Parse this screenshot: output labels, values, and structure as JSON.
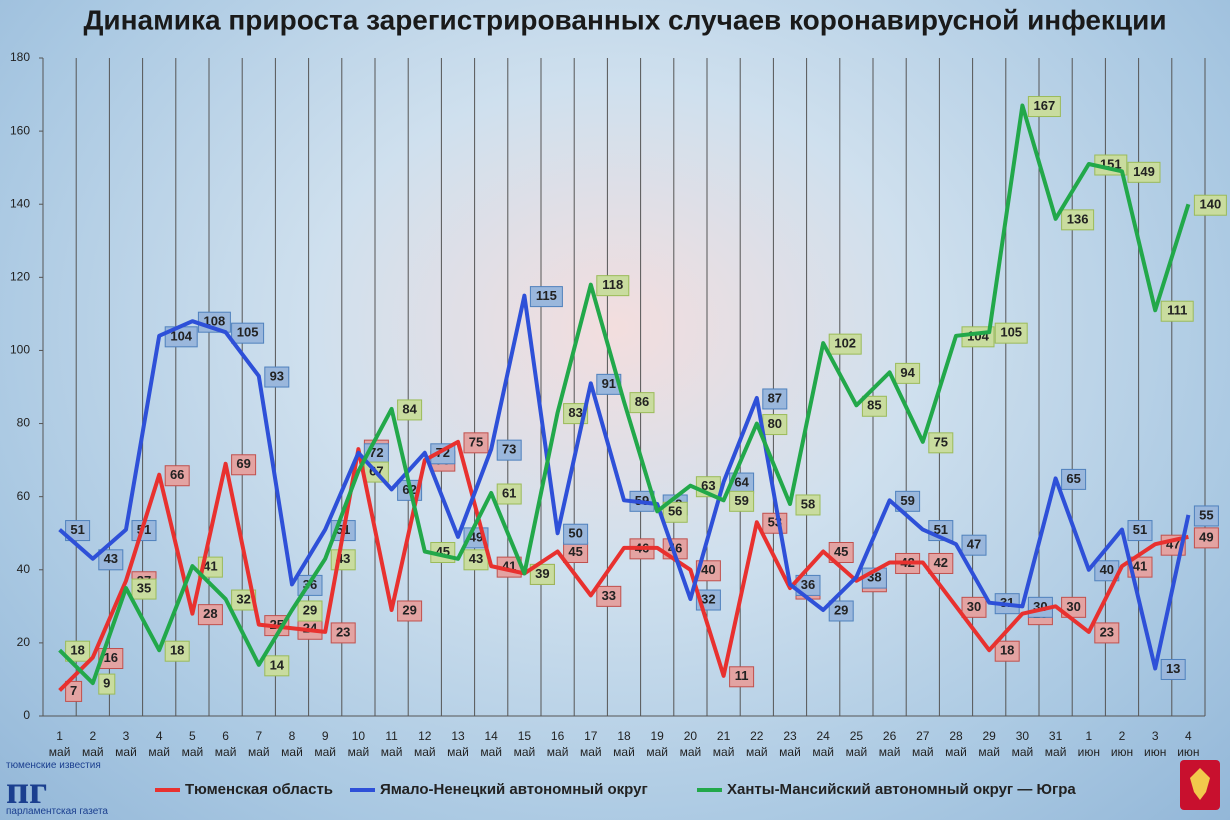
{
  "chart_data": {
    "type": "line",
    "title": "Динамика прироста зарегистрированных случаев коронавирусной инфекции",
    "categories": [
      "1 май",
      "2 май",
      "3 май",
      "4 май",
      "5 май",
      "6 май",
      "7 май",
      "8 май",
      "9 май",
      "10 май",
      "11 май",
      "12 май",
      "13 май",
      "14 май",
      "15 май",
      "16 май",
      "17 май",
      "18 май",
      "19 май",
      "20 май",
      "21 май",
      "22 май",
      "23 май",
      "24 май",
      "25 май",
      "26 май",
      "27 май",
      "28 май",
      "29 май",
      "30 май",
      "31 май",
      "1 июн",
      "2 июн",
      "3 июн",
      "4 июн"
    ],
    "series": [
      {
        "name": "Тюменская область",
        "color": "#e8312f",
        "label_fill": "#e3a3a2",
        "label_stroke": "#c0504d",
        "values": [
          7,
          16,
          37,
          66,
          28,
          69,
          25,
          24,
          23,
          73,
          29,
          70,
          75,
          41,
          39,
          45,
          33,
          46,
          46,
          40,
          11,
          53,
          35,
          45,
          37,
          42,
          42,
          30,
          18,
          28,
          30,
          23,
          41,
          47,
          49
        ]
      },
      {
        "name": "Ямало-Ненецкий автономный округ",
        "color": "#2e50d8",
        "label_fill": "#9ab7dc",
        "label_stroke": "#4f81bd",
        "values": [
          51,
          43,
          51,
          104,
          108,
          105,
          93,
          36,
          51,
          72,
          62,
          72,
          49,
          73,
          115,
          50,
          91,
          59,
          58,
          32,
          64,
          87,
          36,
          29,
          38,
          59,
          51,
          47,
          31,
          30,
          65,
          40,
          51,
          13,
          55
        ]
      },
      {
        "name": "Ханты-Мансийский автономный округ — Югра",
        "color": "#22a84a",
        "label_fill": "#c9dc9f",
        "label_stroke": "#9bbb59",
        "values": [
          18,
          9,
          35,
          18,
          41,
          32,
          14,
          29,
          43,
          67,
          84,
          45,
          43,
          61,
          39,
          83,
          118,
          86,
          56,
          63,
          59,
          80,
          58,
          102,
          85,
          94,
          75,
          104,
          105,
          167,
          136,
          151,
          149,
          111,
          140
        ]
      }
    ],
    "ylim": [
      0,
      180
    ],
    "yticks": [
      0,
      20,
      40,
      60,
      80,
      100,
      120,
      140,
      160,
      180
    ],
    "grid": true,
    "legend": "bottom"
  },
  "logo": {
    "top": "тюменские известия",
    "mark": "пг",
    "bottom": "парламентская газета"
  }
}
